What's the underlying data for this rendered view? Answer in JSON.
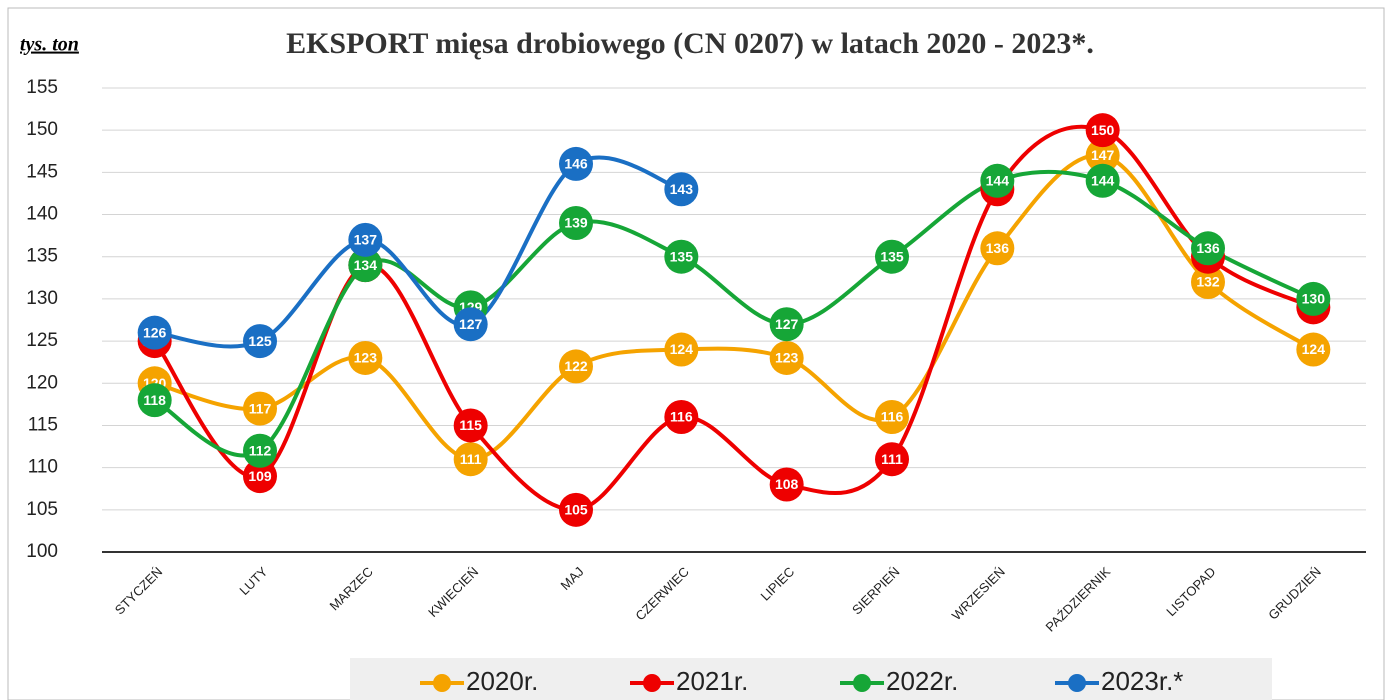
{
  "chart_data": {
    "type": "line",
    "title": "EKSPORT mięsa drobiowego (CN 0207) w latach 2020 - 2023*.",
    "y_label": "tys. ton",
    "categories": [
      "STYCZEŃ",
      "LUTY",
      "MARZEC",
      "KWIECIEŃ",
      "MAJ",
      "CZERWIEC",
      "LIPIEC",
      "SIERPIEŃ",
      "WRZESIEŃ",
      "PAŹDZIERNIK",
      "LISTOPAD",
      "GRUDZIEŃ"
    ],
    "series": [
      {
        "name": "2020r.",
        "color": "#f5a300",
        "values": [
          120,
          117,
          123,
          111,
          122,
          124,
          123,
          116,
          136,
          147,
          132,
          124
        ]
      },
      {
        "name": "2021r.",
        "color": "#ee0000",
        "values": [
          125,
          109,
          134,
          115,
          105,
          116,
          108,
          111,
          143,
          150,
          135,
          129
        ]
      },
      {
        "name": "2022r.",
        "color": "#16a637",
        "values": [
          118,
          112,
          134,
          129,
          139,
          135,
          127,
          135,
          144,
          144,
          136,
          130
        ]
      },
      {
        "name": "2023r.*",
        "color": "#1a6fc4",
        "values": [
          126,
          125,
          137,
          127,
          146,
          143,
          null,
          null,
          null,
          null,
          null,
          null
        ]
      }
    ],
    "ylim": [
      100,
      155
    ],
    "yticks": [
      100,
      105,
      110,
      115,
      120,
      125,
      130,
      135,
      140,
      145,
      150,
      155
    ],
    "grid": true
  }
}
